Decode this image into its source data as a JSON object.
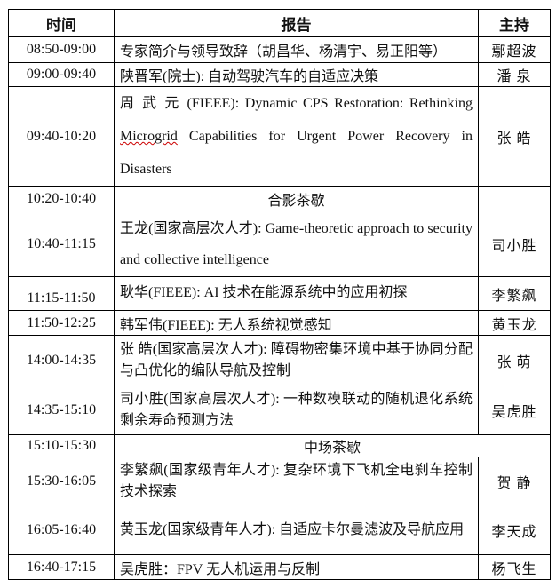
{
  "headers": {
    "time": "时间",
    "talk": "报告",
    "host": "主持"
  },
  "rows": [
    {
      "time": "08:50-09:00",
      "talk": "专家简介与领导致辞（胡昌华、杨清宇、易正阳等）",
      "host": "鄢超波"
    },
    {
      "time": "09:00-09:40",
      "talk": "陕晋军(院士): 自动驾驶汽车的自适应决策",
      "host": "潘 泉"
    },
    {
      "time": "09:40-10:20",
      "talk_pre": "周 武 元 (FIEEE): Dynamic CPS Restoration: Rethinking ",
      "talk_wavy": "Microgrid",
      "talk_post": " Capabilities for Urgent Power Recovery in Disasters",
      "host": "张 皓"
    },
    {
      "time": "10:20-10:40",
      "talk": "合影茶歇",
      "host": ""
    },
    {
      "time": "10:40-11:15",
      "talk": "王龙(国家高层次人才): Game-theoretic approach to security and collective intelligence",
      "host": "司小胜"
    },
    {
      "time": "11:15-11:50",
      "talk": "耿华(FIEEE): AI 技术在能源系统中的应用初探",
      "host": "李繁飙"
    },
    {
      "time": "11:50-12:25",
      "talk": "韩军伟(FIEEE): 无人系统视觉感知",
      "host": "黄玉龙"
    },
    {
      "time": "14:00-14:35",
      "talk": "张 皓(国家高层次人才): 障碍物密集环境中基于协同分配与凸优化的编队导航及控制",
      "host": "张 萌"
    },
    {
      "time": "14:35-15:10",
      "talk": "司小胜(国家高层次人才): 一种数模联动的随机退化系统剩余寿命预测方法",
      "host": "吴虎胜"
    },
    {
      "time": "15:10-15:30",
      "talk": "中场茶歇"
    },
    {
      "time": "15:30-16:05",
      "talk": "李繁飙(国家级青年人才): 复杂环境下飞机全电刹车控制技术探索",
      "host": "贺 静"
    },
    {
      "time": "16:05-16:40",
      "talk": "黄玉龙(国家级青年人才): 自适应卡尔曼滤波及导航应用",
      "host": "李天成"
    },
    {
      "time": "16:40-17:15",
      "talk": "吴虎胜：FPV 无人机运用与反制",
      "host": "杨飞生"
    }
  ]
}
